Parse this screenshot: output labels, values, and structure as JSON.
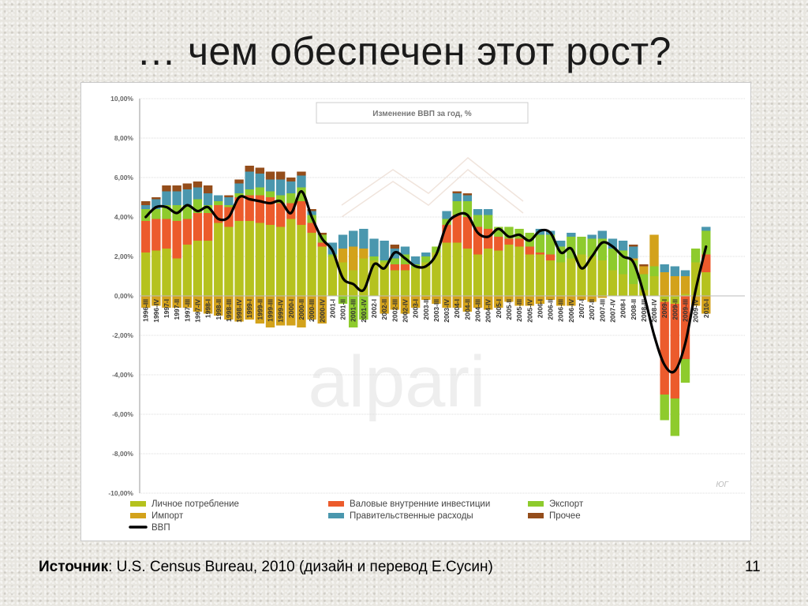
{
  "slide": {
    "title": "… чем обеспечен этот рост?",
    "source_label": "Источник",
    "source_text": ": U.S. Census Bureau, 2010 (дизайн и перевод Е.Сусин)",
    "page_number": "11"
  },
  "chart_data": {
    "type": "bar",
    "stacked": true,
    "title": "Изменение ВВП за год, %",
    "watermark": "alpari",
    "corner_mark": "ЮГ",
    "ylim": [
      -10,
      10
    ],
    "yticks": [
      10,
      8,
      6,
      4,
      2,
      0,
      -2,
      -4,
      -6,
      -8,
      -10
    ],
    "ytick_labels": [
      "10,00%",
      "8,00%",
      "6,00%",
      "4,00%",
      "2,00%",
      "0,00%",
      "-2,00%",
      "-4,00%",
      "-6,00%",
      "-8,00%",
      "-10,00%"
    ],
    "grid": true,
    "legend_position": "bottom",
    "categories": [
      "1996-III",
      "1996-IV",
      "1997-I",
      "1997-II",
      "1997-III",
      "1997-IV",
      "1998-I",
      "1998-II",
      "1998-III",
      "1998-IV",
      "1999-I",
      "1999-II",
      "1999-III",
      "1999-IV",
      "2000-I",
      "2000-II",
      "2000-III",
      "2000-IV",
      "2001-I",
      "2001-II",
      "2001-III",
      "2001-IV",
      "2002-I",
      "2002-II",
      "2002-III",
      "2002-IV",
      "2003-I",
      "2003-II",
      "2003-III",
      "2003-IV",
      "2004-I",
      "2004-II",
      "2004-III",
      "2004-IV",
      "2005-I",
      "2005-II",
      "2005-III",
      "2005-IV",
      "2006-I",
      "2006-II",
      "2006-III",
      "2006-IV",
      "2007-I",
      "2007-II",
      "2007-III",
      "2007-IV",
      "2008-I",
      "2008-II",
      "2008-III",
      "2008-IV",
      "2009-I",
      "2009-II",
      "2009-III",
      "2009-IV",
      "2010-I"
    ],
    "shown_category_labels": [
      "1996-III",
      "1996-IV",
      "1997-I",
      "1997-II",
      "1997-III",
      "1997-IV",
      "1998-I",
      "1998-II",
      "1998-III",
      "1998-IV",
      "1999-I",
      "1999-II",
      "1999-III",
      "1999-IV",
      "2000-I",
      "2000-II",
      "2000-III",
      "2000-IV",
      "2001-I",
      "2001-II",
      "2001-III",
      "2001-IV",
      "2002-I",
      "2002-II",
      "2002-III",
      "2002-IV",
      "2003-I",
      "2003-II",
      "2003-III",
      "2003-IV",
      "2004-I",
      "2004-II",
      "2004-III",
      "2004-IV",
      "2005-I",
      "2005-II",
      "2005-III",
      "2005-IV",
      "2006-I",
      "2006-II",
      "2006-III",
      "2006-IV",
      "2007-I",
      "2007-II",
      "2007-III",
      "2007-IV",
      "2008-I",
      "2008-II",
      "2008-III",
      "2008-IV",
      "2009-I",
      "2009-II",
      "2009-III",
      "2009-IV",
      "2010-I"
    ],
    "series": [
      {
        "name": "Личное потребление",
        "color": "#b5c21e",
        "values": [
          2.2,
          2.3,
          2.4,
          1.9,
          2.6,
          2.8,
          2.8,
          3.7,
          3.5,
          3.8,
          3.8,
          3.7,
          3.6,
          3.5,
          3.9,
          3.6,
          3.2,
          2.5,
          2.0,
          1.7,
          1.3,
          1.9,
          1.8,
          1.7,
          1.3,
          1.3,
          1.4,
          1.7,
          2.2,
          2.7,
          2.7,
          2.4,
          2.1,
          2.4,
          2.3,
          2.6,
          2.5,
          2.1,
          2.1,
          1.8,
          1.7,
          1.9,
          2.1,
          2.0,
          1.8,
          1.3,
          1.1,
          0.6,
          0.3,
          1.0,
          -0.3,
          -0.4,
          0.1,
          1.7,
          1.2
        ]
      },
      {
        "name": "Валовые внутренние инвестиции",
        "color": "#ec5b2c",
        "values": [
          1.6,
          1.6,
          1.5,
          1.9,
          1.3,
          1.4,
          1.4,
          0.9,
          1.0,
          1.2,
          1.3,
          1.4,
          1.4,
          1.2,
          0.8,
          1.2,
          0.5,
          0.2,
          0.0,
          0.0,
          0.0,
          0.0,
          0.0,
          0.0,
          0.3,
          0.3,
          0.0,
          0.0,
          0.0,
          0.9,
          1.4,
          1.6,
          1.4,
          1.0,
          0.7,
          0.3,
          0.4,
          0.4,
          0.1,
          0.3,
          0.0,
          0.0,
          0.0,
          0.0,
          0.0,
          0.0,
          0.0,
          0.0,
          0.0,
          0.0,
          -4.7,
          -4.8,
          -3.2,
          0.0,
          0.9
        ]
      },
      {
        "name": "Экспорт",
        "color": "#8ecb2d",
        "values": [
          0.6,
          0.5,
          0.7,
          0.8,
          0.7,
          0.7,
          0.4,
          0.2,
          0.1,
          0.2,
          0.3,
          0.4,
          0.3,
          0.4,
          0.5,
          0.7,
          0.4,
          0.4,
          0.1,
          -0.4,
          -1.6,
          -1.2,
          0.2,
          0.1,
          0.3,
          0.5,
          0.2,
          0.3,
          0.3,
          0.3,
          0.7,
          0.8,
          0.6,
          0.7,
          0.5,
          0.6,
          0.5,
          0.7,
          0.9,
          1.0,
          0.8,
          1.1,
          0.9,
          0.9,
          1.1,
          1.1,
          1.2,
          1.2,
          0.8,
          0.5,
          -1.3,
          -1.9,
          -1.2,
          0.7,
          1.2
        ]
      },
      {
        "name": "Импорт",
        "color": "#d3a21b",
        "values": [
          -0.6,
          -0.5,
          -0.6,
          -0.6,
          -0.6,
          -0.8,
          -0.9,
          -1.0,
          -1.2,
          -1.3,
          -1.2,
          -1.4,
          -1.6,
          -1.5,
          -1.5,
          -1.6,
          -1.2,
          -1.4,
          0.0,
          0.7,
          1.2,
          0.5,
          0.0,
          -0.9,
          -0.7,
          -0.9,
          -0.6,
          -0.2,
          -0.4,
          -0.6,
          -0.6,
          -0.8,
          -0.6,
          -0.7,
          -0.6,
          -0.3,
          -0.5,
          -0.5,
          -0.4,
          -0.2,
          -0.5,
          -0.5,
          -0.2,
          -0.3,
          -0.1,
          0.0,
          0.0,
          0.1,
          0.4,
          1.6,
          1.2,
          1.0,
          0.9,
          -0.5,
          -0.9
        ]
      },
      {
        "name": "Правительственные расходы",
        "color": "#4a97ae",
        "values": [
          0.2,
          0.5,
          0.7,
          0.7,
          0.8,
          0.6,
          0.6,
          0.3,
          0.4,
          0.5,
          0.9,
          0.7,
          0.6,
          0.8,
          0.6,
          0.6,
          0.2,
          0.0,
          0.6,
          0.7,
          0.8,
          1.0,
          0.9,
          1.0,
          0.5,
          0.4,
          0.4,
          0.2,
          0.0,
          0.4,
          0.4,
          0.3,
          0.3,
          0.3,
          0.0,
          0.0,
          0.0,
          0.0,
          0.3,
          0.2,
          0.3,
          0.2,
          0.0,
          0.2,
          0.4,
          0.5,
          0.5,
          0.6,
          0.0,
          0.0,
          0.4,
          0.5,
          0.3,
          0.0,
          0.2
        ]
      },
      {
        "name": "Прочее",
        "color": "#944d1b",
        "values": [
          0.2,
          0.1,
          0.3,
          0.3,
          0.3,
          0.3,
          0.4,
          0.0,
          0.1,
          0.2,
          0.3,
          0.3,
          0.4,
          0.4,
          0.2,
          0.2,
          0.1,
          0.1,
          0.0,
          0.0,
          0.0,
          0.0,
          0.0,
          0.0,
          0.2,
          0.0,
          0.0,
          0.0,
          0.0,
          0.0,
          0.1,
          0.1,
          0.0,
          0.0,
          0.0,
          0.0,
          0.0,
          0.0,
          0.0,
          0.0,
          0.0,
          0.0,
          0.0,
          0.0,
          0.0,
          0.0,
          0.0,
          0.1,
          0.1,
          0.0,
          0.0,
          0.0,
          0.0,
          0.0,
          0.0
        ]
      },
      {
        "name": "ВВП",
        "type": "line",
        "color": "#000000",
        "values": [
          4.0,
          4.5,
          4.5,
          4.2,
          4.6,
          4.3,
          4.5,
          3.9,
          4.0,
          5.0,
          4.9,
          4.8,
          4.7,
          4.8,
          4.2,
          5.3,
          4.0,
          2.9,
          2.3,
          0.9,
          0.6,
          0.3,
          1.6,
          1.4,
          2.2,
          1.9,
          1.5,
          1.5,
          2.1,
          3.6,
          4.1,
          4.1,
          3.2,
          3.0,
          3.4,
          3.0,
          3.1,
          2.8,
          3.3,
          3.2,
          2.2,
          2.4,
          1.4,
          2.0,
          2.7,
          2.5,
          2.0,
          1.7,
          0.1,
          -2.0,
          -3.5,
          -3.8,
          -2.4,
          0.3,
          2.5
        ]
      }
    ]
  }
}
